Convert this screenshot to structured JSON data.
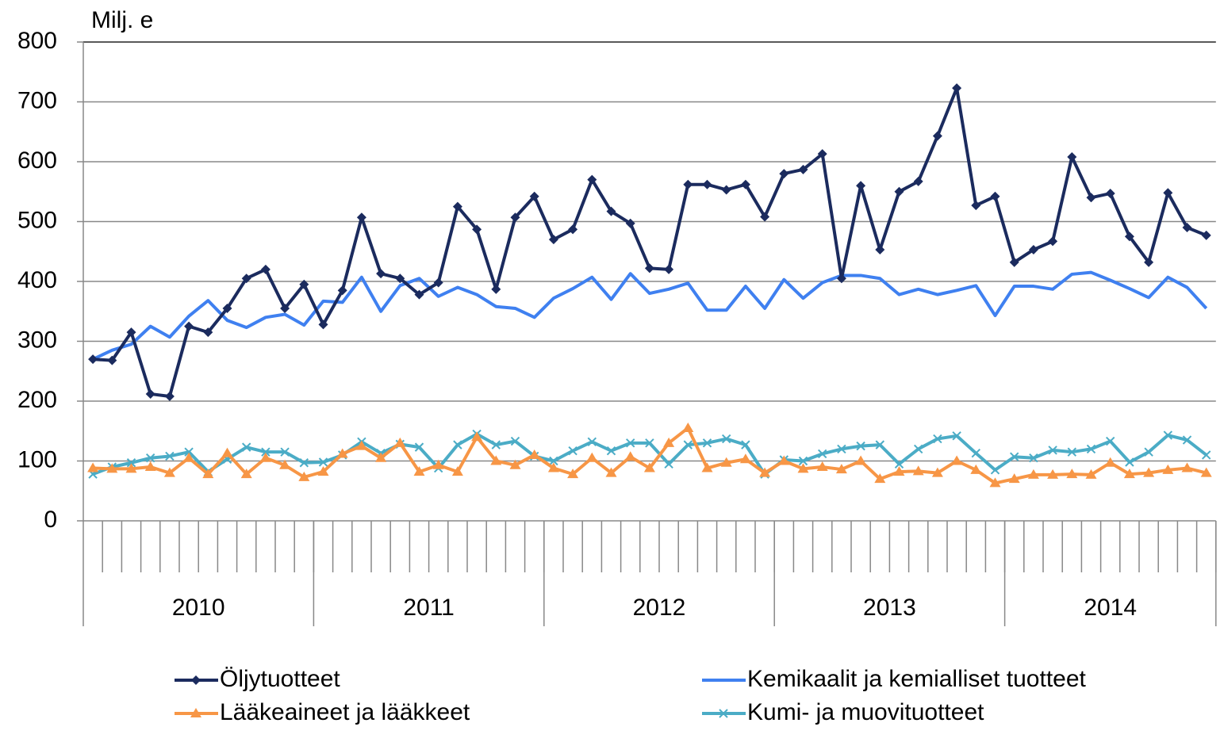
{
  "chart_data": {
    "type": "line",
    "y_axis_label": "Milj. e",
    "categories": [
      null,
      null,
      null,
      null,
      null,
      null,
      null,
      null,
      null,
      null,
      null,
      null,
      null,
      null,
      null,
      null,
      null,
      null,
      null,
      null,
      null,
      null,
      null,
      null,
      null,
      null,
      null,
      null,
      null,
      null,
      null,
      null,
      null,
      null,
      null,
      null,
      null,
      null,
      null,
      null,
      null,
      null,
      null,
      null,
      null,
      null,
      null,
      null,
      null,
      null,
      null,
      null,
      null,
      null,
      null,
      null,
      null,
      null,
      null
    ],
    "groups": [
      "2010",
      "2011",
      "2012",
      "2013",
      "2014"
    ],
    "ylim": [
      0,
      800
    ],
    "yticks": [
      0,
      100,
      200,
      300,
      400,
      500,
      600,
      700,
      800
    ],
    "grid": true,
    "series": [
      {
        "name": "Öljytuotteet",
        "color": "#1b2b5e",
        "marker": "diamond",
        "values": [
          270,
          268,
          315,
          212,
          208,
          325,
          315,
          355,
          405,
          420,
          355,
          395,
          328,
          385,
          507,
          413,
          405,
          378,
          398,
          525,
          487,
          387,
          507,
          542,
          470,
          487,
          570,
          517,
          497,
          422,
          420,
          562,
          562,
          553,
          562,
          508,
          580,
          587,
          613,
          405,
          560,
          453,
          550,
          567,
          643,
          723,
          527,
          542,
          432,
          453,
          467,
          608,
          540,
          547,
          475,
          432,
          548,
          490,
          477
        ]
      },
      {
        "name": "Kemikaalit ja kemialliset tuotteet",
        "color": "#3f80f0",
        "marker": "none",
        "values": [
          270,
          285,
          295,
          325,
          307,
          342,
          368,
          335,
          323,
          340,
          345,
          327,
          367,
          365,
          407,
          350,
          393,
          405,
          375,
          390,
          378,
          358,
          355,
          340,
          372,
          388,
          407,
          370,
          413,
          380,
          387,
          397,
          352,
          352,
          392,
          355,
          403,
          372,
          398,
          410,
          410,
          405,
          378,
          387,
          378,
          385,
          393,
          343,
          392,
          392,
          387,
          412,
          415,
          402,
          388,
          373,
          407,
          390,
          355
        ]
      },
      {
        "name": "Lääkeaineet ja lääkkeet",
        "color": "#f79646",
        "marker": "triangle",
        "values": [
          88,
          87,
          87,
          90,
          80,
          105,
          78,
          113,
          78,
          105,
          93,
          73,
          82,
          112,
          125,
          105,
          130,
          82,
          93,
          82,
          140,
          100,
          93,
          110,
          88,
          78,
          105,
          80,
          107,
          88,
          130,
          155,
          88,
          97,
          103,
          80,
          100,
          87,
          90,
          86,
          100,
          70,
          82,
          83,
          80,
          100,
          85,
          63,
          70,
          77,
          77,
          78,
          77,
          97,
          78,
          80,
          85,
          88,
          80
        ]
      },
      {
        "name": "Kumi- ja muovituotteet",
        "color": "#4bacc6",
        "marker": "x",
        "values": [
          78,
          90,
          97,
          105,
          108,
          115,
          82,
          103,
          123,
          115,
          115,
          97,
          98,
          110,
          132,
          113,
          128,
          123,
          88,
          127,
          145,
          127,
          133,
          108,
          100,
          117,
          132,
          117,
          130,
          130,
          95,
          127,
          130,
          137,
          127,
          78,
          102,
          100,
          112,
          120,
          125,
          127,
          95,
          120,
          137,
          142,
          113,
          85,
          107,
          105,
          118,
          115,
          120,
          133,
          98,
          115,
          143,
          135,
          110
        ]
      }
    ]
  }
}
